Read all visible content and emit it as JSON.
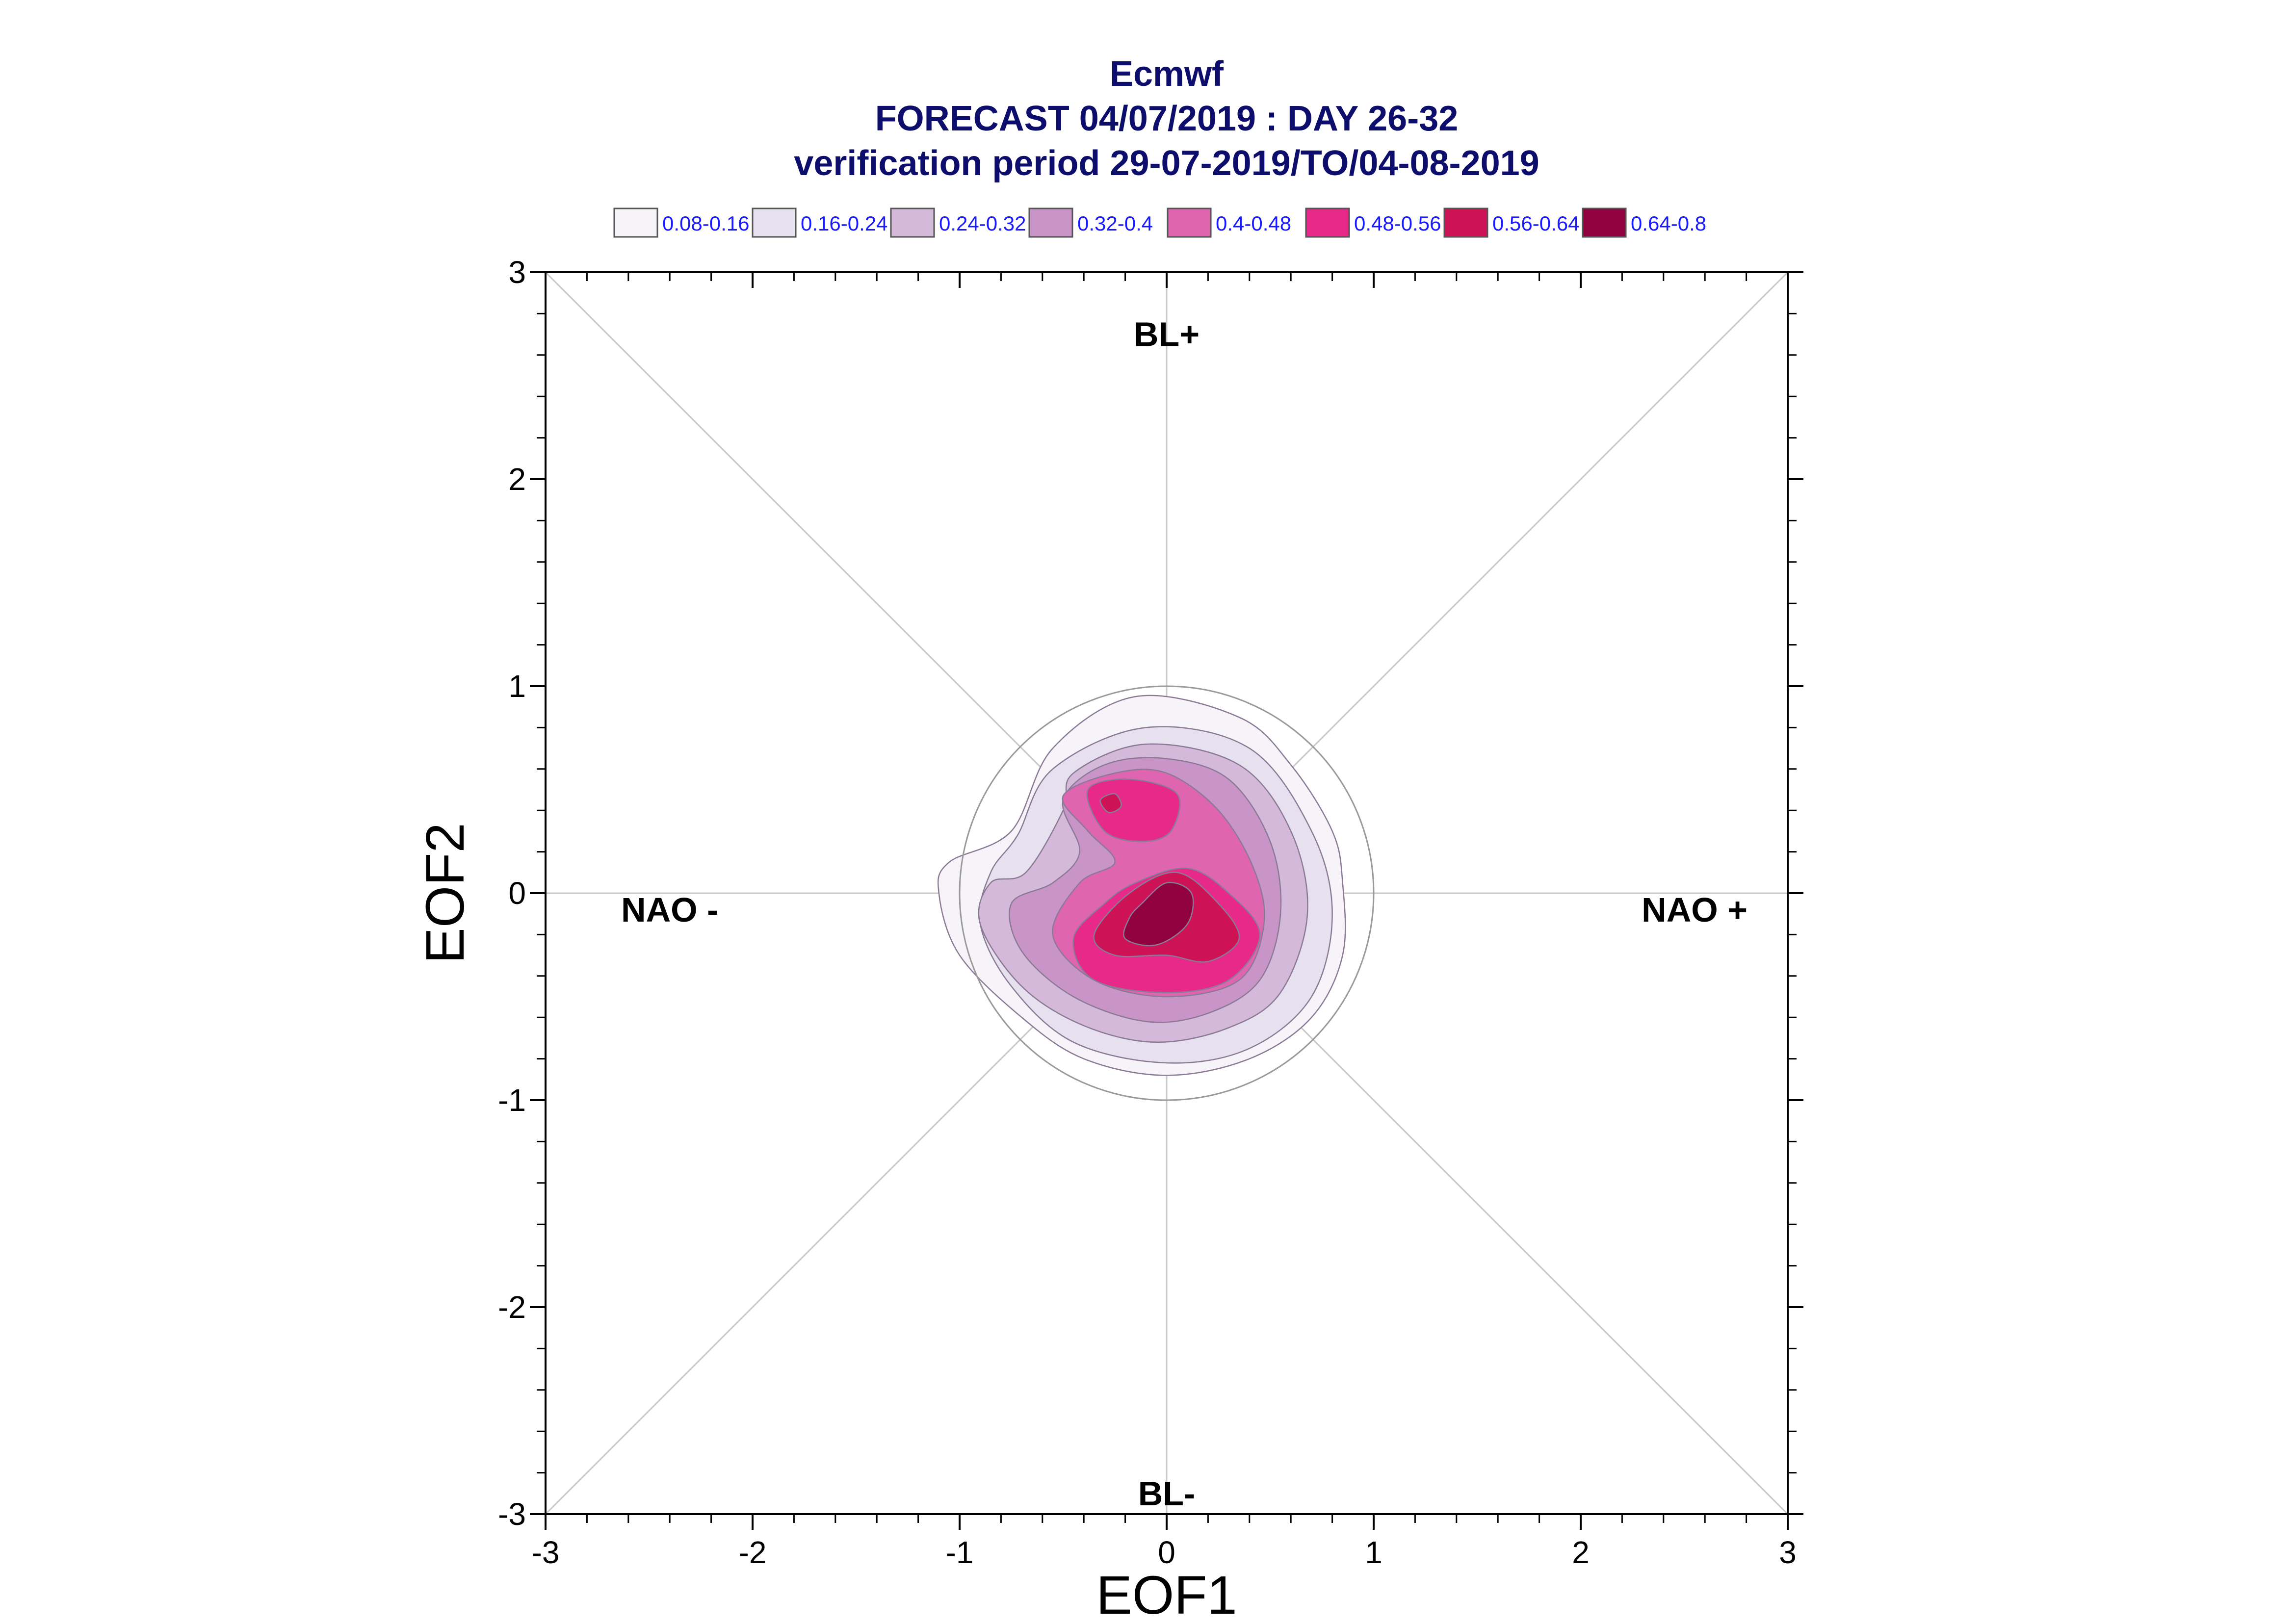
{
  "chart_data": {
    "type": "contour",
    "title": "Ecmwf",
    "subtitle": "FORECAST 04/07/2019 : DAY 26-32",
    "subtitle2": "verification period 29-07-2019/TO/04-08-2019",
    "xlabel": "EOF1",
    "ylabel": "EOF2",
    "xlim": [
      -3,
      3
    ],
    "ylim": [
      -3,
      3
    ],
    "x_ticks": [
      "-3",
      "-2",
      "-1",
      "0",
      "1",
      "2",
      "3"
    ],
    "y_ticks": [
      "3",
      "2",
      "1",
      "0",
      "-1",
      "-2",
      "-3"
    ],
    "legend_position": "top",
    "legend": [
      {
        "label": "0.08-0.16",
        "color": "#f7f4f9"
      },
      {
        "label": "0.16-0.24",
        "color": "#e7e1ef"
      },
      {
        "label": "0.24-0.32",
        "color": "#d4b9da"
      },
      {
        "label": "0.32-0.4",
        "color": "#c994c7"
      },
      {
        "label": "0.4-0.48",
        "color": "#df65b0"
      },
      {
        "label": "0.48-0.56",
        "color": "#e7298a"
      },
      {
        "label": "0.56-0.64",
        "color": "#ce1256"
      },
      {
        "label": "0.64-0.8",
        "color": "#91003f"
      }
    ],
    "regime_labels": [
      {
        "text": "BL+",
        "x": 0,
        "y": 2.7
      },
      {
        "text": "BL-",
        "x": 0,
        "y": -2.9
      },
      {
        "text": "NAO -",
        "x": -2.4,
        "y": -0.08
      },
      {
        "text": "NAO +",
        "x": 2.55,
        "y": -0.08
      }
    ],
    "reference_circle": {
      "center": [
        0,
        0
      ],
      "radius": 1
    },
    "contours": [
      {
        "level": "0.08-0.16",
        "points": [
          [
            -0.75,
            0.3
          ],
          [
            -0.55,
            0.7
          ],
          [
            -0.15,
            0.95
          ],
          [
            0.35,
            0.85
          ],
          [
            0.6,
            0.62
          ],
          [
            0.8,
            0.3
          ],
          [
            0.85,
            0.05
          ],
          [
            0.85,
            -0.3
          ],
          [
            0.7,
            -0.6
          ],
          [
            0.4,
            -0.8
          ],
          [
            0.0,
            -0.88
          ],
          [
            -0.4,
            -0.8
          ],
          [
            -0.7,
            -0.6
          ],
          [
            -1.0,
            -0.3
          ],
          [
            -1.1,
            0.0
          ],
          [
            -1.05,
            0.15
          ]
        ]
      },
      {
        "level": "0.16-0.24",
        "points": [
          [
            -0.72,
            0.28
          ],
          [
            -0.55,
            0.6
          ],
          [
            -0.1,
            0.8
          ],
          [
            0.4,
            0.7
          ],
          [
            0.7,
            0.3
          ],
          [
            0.8,
            -0.1
          ],
          [
            0.7,
            -0.5
          ],
          [
            0.4,
            -0.75
          ],
          [
            0.0,
            -0.82
          ],
          [
            -0.45,
            -0.72
          ],
          [
            -0.75,
            -0.45
          ],
          [
            -0.9,
            -0.15
          ],
          [
            -0.85,
            0.1
          ]
        ]
      },
      {
        "level": "0.24-0.32",
        "points": [
          [
            -0.68,
            0.1
          ],
          [
            -0.5,
            0.4
          ],
          [
            -0.45,
            0.58
          ],
          [
            -0.1,
            0.72
          ],
          [
            0.35,
            0.62
          ],
          [
            0.6,
            0.3
          ],
          [
            0.68,
            -0.1
          ],
          [
            0.55,
            -0.48
          ],
          [
            0.3,
            -0.65
          ],
          [
            -0.05,
            -0.72
          ],
          [
            -0.4,
            -0.64
          ],
          [
            -0.7,
            -0.45
          ],
          [
            -0.9,
            -0.15
          ],
          [
            -0.85,
            0.05
          ]
        ]
      },
      {
        "level": "0.32-0.4",
        "points": [
          [
            -0.5,
            0.45
          ],
          [
            -0.3,
            0.62
          ],
          [
            0.0,
            0.65
          ],
          [
            0.3,
            0.55
          ],
          [
            0.5,
            0.25
          ],
          [
            0.55,
            -0.1
          ],
          [
            0.45,
            -0.42
          ],
          [
            0.2,
            -0.58
          ],
          [
            -0.1,
            -0.62
          ],
          [
            -0.45,
            -0.5
          ],
          [
            -0.7,
            -0.28
          ],
          [
            -0.75,
            -0.05
          ],
          [
            -0.55,
            0.05
          ],
          [
            -0.42,
            0.2
          ]
        ]
      },
      {
        "level": "0.4-0.48",
        "points": [
          [
            -0.5,
            0.47
          ],
          [
            -0.25,
            0.58
          ],
          [
            0.0,
            0.58
          ],
          [
            0.25,
            0.4
          ],
          [
            0.42,
            0.12
          ],
          [
            0.47,
            -0.15
          ],
          [
            0.35,
            -0.42
          ],
          [
            0.0,
            -0.5
          ],
          [
            -0.35,
            -0.42
          ],
          [
            -0.55,
            -0.2
          ],
          [
            -0.42,
            0.05
          ],
          [
            -0.25,
            0.15
          ],
          [
            -0.38,
            0.3
          ]
        ]
      },
      {
        "level": "0.48-0.56",
        "points": [
          [
            -0.38,
            0.5
          ],
          [
            -0.18,
            0.55
          ],
          [
            0.05,
            0.48
          ],
          [
            0.02,
            0.3
          ],
          [
            -0.12,
            0.25
          ],
          [
            -0.3,
            0.3
          ]
        ]
      },
      {
        "level": "0.48-0.56",
        "points": [
          [
            -0.15,
            0.05
          ],
          [
            0.1,
            0.12
          ],
          [
            0.3,
            0.0
          ],
          [
            0.45,
            -0.2
          ],
          [
            0.3,
            -0.42
          ],
          [
            0.0,
            -0.48
          ],
          [
            -0.35,
            -0.42
          ],
          [
            -0.45,
            -0.22
          ],
          [
            -0.3,
            -0.05
          ]
        ]
      },
      {
        "level": "0.56-0.64",
        "points": [
          [
            -0.18,
            0.0
          ],
          [
            0.05,
            0.1
          ],
          [
            0.25,
            -0.05
          ],
          [
            0.35,
            -0.22
          ],
          [
            0.2,
            -0.33
          ],
          [
            0.0,
            -0.3
          ],
          [
            -0.25,
            -0.3
          ],
          [
            -0.35,
            -0.2
          ]
        ]
      },
      {
        "level": "0.56-0.64",
        "points": [
          [
            -0.32,
            0.45
          ],
          [
            -0.25,
            0.48
          ],
          [
            -0.22,
            0.42
          ],
          [
            -0.28,
            0.39
          ]
        ]
      },
      {
        "level": "0.64-0.8",
        "points": [
          [
            -0.12,
            -0.05
          ],
          [
            0.0,
            0.05
          ],
          [
            0.12,
            0.0
          ],
          [
            0.1,
            -0.15
          ],
          [
            -0.05,
            -0.25
          ],
          [
            -0.2,
            -0.22
          ],
          [
            -0.18,
            -0.12
          ]
        ]
      }
    ]
  }
}
